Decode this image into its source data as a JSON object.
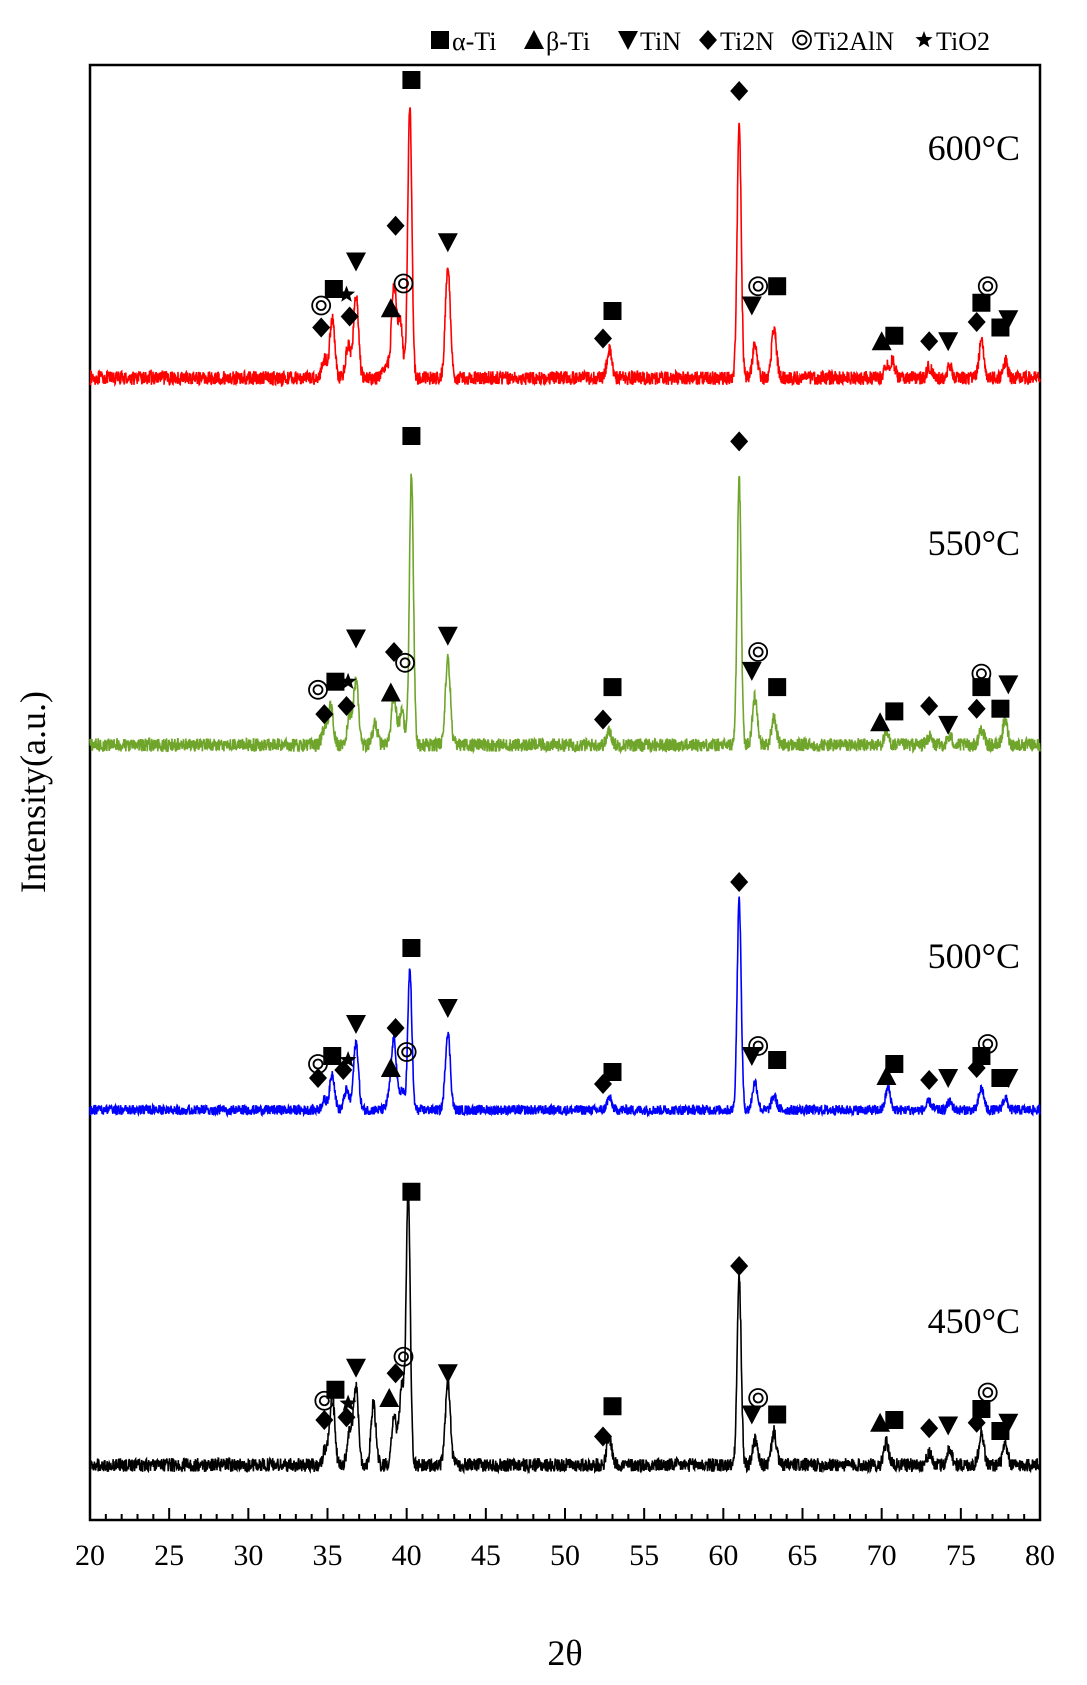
{
  "chart_data": {
    "type": "line",
    "title": "",
    "xlabel": "2θ",
    "ylabel": "Intensity(a.u.)",
    "xlim": [
      20,
      80
    ],
    "xticks": [
      "20",
      "25",
      "30",
      "35",
      "40",
      "45",
      "50",
      "55",
      "60",
      "65",
      "70",
      "75",
      "80"
    ],
    "legend": {
      "placement": "top",
      "entries": [
        {
          "marker": "square",
          "label": "α-Ti"
        },
        {
          "marker": "triangle-up",
          "label": "β-Ti"
        },
        {
          "marker": "triangle-down",
          "label": "TiN"
        },
        {
          "marker": "diamond",
          "label": "Ti2N"
        },
        {
          "marker": "double-circle",
          "label": "Ti2AlN"
        },
        {
          "marker": "star",
          "label": "TiO2"
        }
      ]
    },
    "series": [
      {
        "name": "600°C",
        "color": "#ff0000",
        "baseline": 0,
        "peaks": [
          [
            34.8,
            0.07
          ],
          [
            35.3,
            0.22
          ],
          [
            36.3,
            0.12
          ],
          [
            36.8,
            0.3
          ],
          [
            38.7,
            0.05
          ],
          [
            39.2,
            0.34
          ],
          [
            39.6,
            0.2
          ],
          [
            40.2,
            1.0
          ],
          [
            42.6,
            0.4
          ],
          [
            52.8,
            0.1
          ],
          [
            61.0,
            0.92
          ],
          [
            62.0,
            0.12
          ],
          [
            63.2,
            0.18
          ],
          [
            70.3,
            0.05
          ],
          [
            70.7,
            0.06
          ],
          [
            73.0,
            0.04
          ],
          [
            74.3,
            0.04
          ],
          [
            76.3,
            0.13
          ],
          [
            77.8,
            0.06
          ]
        ],
        "markers": [
          [
            "diamond",
            34.6,
            0.14
          ],
          [
            "double-circle",
            34.6,
            0.22
          ],
          [
            "square",
            35.4,
            0.28
          ],
          [
            "star",
            36.2,
            0.26
          ],
          [
            "diamond",
            36.4,
            0.18
          ],
          [
            "triangle-down",
            36.8,
            0.38
          ],
          [
            "triangle-up",
            39.0,
            0.21
          ],
          [
            "diamond",
            39.3,
            0.51
          ],
          [
            "double-circle",
            39.8,
            0.3
          ],
          [
            "square",
            40.3,
            1.04
          ],
          [
            "triangle-down",
            42.6,
            0.45
          ],
          [
            "square",
            53.0,
            0.2
          ],
          [
            "diamond",
            52.4,
            0.1
          ],
          [
            "diamond",
            61.0,
            1.0
          ],
          [
            "triangle-down",
            61.8,
            0.22
          ],
          [
            "double-circle",
            62.2,
            0.29
          ],
          [
            "square",
            63.4,
            0.29
          ],
          [
            "triangle-up",
            70.0,
            0.09
          ],
          [
            "square",
            70.8,
            0.11
          ],
          [
            "diamond",
            73.0,
            0.09
          ],
          [
            "triangle-down",
            74.2,
            0.09
          ],
          [
            "diamond",
            76.0,
            0.16
          ],
          [
            "square",
            76.3,
            0.23
          ],
          [
            "double-circle",
            76.7,
            0.29
          ],
          [
            "square",
            77.5,
            0.14
          ],
          [
            "triangle-down",
            78.0,
            0.17
          ]
        ]
      },
      {
        "name": "550°C",
        "color": "#70a52b",
        "baseline": 0,
        "peaks": [
          [
            34.8,
            0.06
          ],
          [
            35.2,
            0.14
          ],
          [
            36.4,
            0.1
          ],
          [
            36.8,
            0.24
          ],
          [
            38.0,
            0.08
          ],
          [
            39.2,
            0.18
          ],
          [
            39.7,
            0.12
          ],
          [
            40.3,
            1.0
          ],
          [
            42.6,
            0.32
          ],
          [
            52.8,
            0.05
          ],
          [
            61.0,
            0.98
          ],
          [
            62.0,
            0.18
          ],
          [
            63.2,
            0.1
          ],
          [
            70.3,
            0.04
          ],
          [
            73.0,
            0.03
          ],
          [
            74.3,
            0.03
          ],
          [
            76.3,
            0.06
          ],
          [
            77.8,
            0.09
          ]
        ],
        "markers": [
          [
            "diamond",
            34.8,
            0.07
          ],
          [
            "double-circle",
            34.4,
            0.16
          ],
          [
            "square",
            35.5,
            0.19
          ],
          [
            "star",
            36.3,
            0.19
          ],
          [
            "diamond",
            36.2,
            0.1
          ],
          [
            "triangle-down",
            36.8,
            0.35
          ],
          [
            "triangle-up",
            39.0,
            0.15
          ],
          [
            "diamond",
            39.2,
            0.3
          ],
          [
            "double-circle",
            39.9,
            0.26
          ],
          [
            "square",
            40.3,
            1.1
          ],
          [
            "triangle-down",
            42.6,
            0.36
          ],
          [
            "square",
            53.0,
            0.17
          ],
          [
            "diamond",
            52.4,
            0.05
          ],
          [
            "diamond",
            61.0,
            1.08
          ],
          [
            "triangle-down",
            61.8,
            0.23
          ],
          [
            "double-circle",
            62.2,
            0.3
          ],
          [
            "square",
            63.4,
            0.17
          ],
          [
            "triangle-up",
            69.9,
            0.04
          ],
          [
            "square",
            70.8,
            0.08
          ],
          [
            "diamond",
            73.0,
            0.1
          ],
          [
            "triangle-down",
            74.2,
            0.03
          ],
          [
            "diamond",
            76.0,
            0.09
          ],
          [
            "square",
            76.3,
            0.17
          ],
          [
            "double-circle",
            76.3,
            0.22
          ],
          [
            "square",
            77.5,
            0.09
          ],
          [
            "triangle-down",
            78.0,
            0.18
          ]
        ]
      },
      {
        "name": "500°C",
        "color": "#0000ff",
        "baseline": 0,
        "peaks": [
          [
            34.8,
            0.05
          ],
          [
            35.3,
            0.18
          ],
          [
            36.2,
            0.1
          ],
          [
            36.8,
            0.34
          ],
          [
            38.9,
            0.06
          ],
          [
            39.2,
            0.35
          ],
          [
            39.7,
            0.1
          ],
          [
            40.2,
            0.7
          ],
          [
            42.6,
            0.39
          ],
          [
            52.8,
            0.06
          ],
          [
            61.0,
            1.05
          ],
          [
            62.0,
            0.14
          ],
          [
            63.2,
            0.07
          ],
          [
            70.4,
            0.11
          ],
          [
            73.0,
            0.04
          ],
          [
            74.3,
            0.04
          ],
          [
            76.3,
            0.11
          ],
          [
            77.8,
            0.06
          ]
        ],
        "markers": [
          [
            "diamond",
            34.4,
            0.1
          ],
          [
            "double-circle",
            34.4,
            0.17
          ],
          [
            "square",
            35.3,
            0.21
          ],
          [
            "star",
            36.3,
            0.19
          ],
          [
            "diamond",
            36.0,
            0.14
          ],
          [
            "triangle-down",
            36.8,
            0.37
          ],
          [
            "triangle-up",
            39.0,
            0.15
          ],
          [
            "diamond",
            39.3,
            0.35
          ],
          [
            "double-circle",
            40.0,
            0.23
          ],
          [
            "square",
            40.3,
            0.75
          ],
          [
            "triangle-down",
            42.6,
            0.45
          ],
          [
            "square",
            53.0,
            0.13
          ],
          [
            "diamond",
            52.4,
            0.07
          ],
          [
            "diamond",
            61.0,
            1.08
          ],
          [
            "triangle-down",
            61.8,
            0.21
          ],
          [
            "double-circle",
            62.2,
            0.26
          ],
          [
            "square",
            63.4,
            0.19
          ],
          [
            "triangle-up",
            70.3,
            0.11
          ],
          [
            "square",
            70.8,
            0.17
          ],
          [
            "diamond",
            73.0,
            0.09
          ],
          [
            "triangle-down",
            74.2,
            0.1
          ],
          [
            "diamond",
            76.0,
            0.15
          ],
          [
            "square",
            76.3,
            0.21
          ],
          [
            "double-circle",
            76.7,
            0.27
          ],
          [
            "square",
            77.5,
            0.1
          ],
          [
            "triangle-down",
            78.0,
            0.1
          ]
        ]
      },
      {
        "name": "450°C",
        "color": "#000000",
        "baseline": 0,
        "peaks": [
          [
            34.9,
            0.06
          ],
          [
            35.3,
            0.25
          ],
          [
            36.4,
            0.12
          ],
          [
            36.8,
            0.28
          ],
          [
            37.9,
            0.22
          ],
          [
            39.2,
            0.18
          ],
          [
            39.7,
            0.3
          ],
          [
            40.1,
            1.0
          ],
          [
            42.6,
            0.3
          ],
          [
            52.8,
            0.1
          ],
          [
            61.0,
            0.68
          ],
          [
            62.0,
            0.09
          ],
          [
            63.2,
            0.12
          ],
          [
            70.3,
            0.08
          ],
          [
            73.0,
            0.04
          ],
          [
            74.3,
            0.06
          ],
          [
            76.3,
            0.12
          ],
          [
            77.8,
            0.07
          ]
        ],
        "markers": [
          [
            "diamond",
            34.8,
            0.12
          ],
          [
            "double-circle",
            34.8,
            0.19
          ],
          [
            "square",
            35.5,
            0.23
          ],
          [
            "star",
            36.3,
            0.18
          ],
          [
            "diamond",
            36.2,
            0.13
          ],
          [
            "triangle-down",
            36.8,
            0.31
          ],
          [
            "triangle-up",
            38.9,
            0.2
          ],
          [
            "diamond",
            39.3,
            0.29
          ],
          [
            "double-circle",
            39.8,
            0.35
          ],
          [
            "square",
            40.3,
            0.95
          ],
          [
            "triangle-down",
            42.6,
            0.29
          ],
          [
            "square",
            53.0,
            0.17
          ],
          [
            "diamond",
            52.4,
            0.06
          ],
          [
            "diamond",
            61.0,
            0.68
          ],
          [
            "triangle-down",
            61.8,
            0.14
          ],
          [
            "double-circle",
            62.2,
            0.2
          ],
          [
            "square",
            63.4,
            0.14
          ],
          [
            "triangle-up",
            69.9,
            0.11
          ],
          [
            "square",
            70.8,
            0.12
          ],
          [
            "diamond",
            73.0,
            0.09
          ],
          [
            "triangle-down",
            74.2,
            0.1
          ],
          [
            "diamond",
            76.0,
            0.11
          ],
          [
            "square",
            76.3,
            0.16
          ],
          [
            "double-circle",
            76.7,
            0.22
          ],
          [
            "square",
            77.5,
            0.08
          ],
          [
            "triangle-down",
            78.0,
            0.11
          ]
        ]
      }
    ]
  }
}
